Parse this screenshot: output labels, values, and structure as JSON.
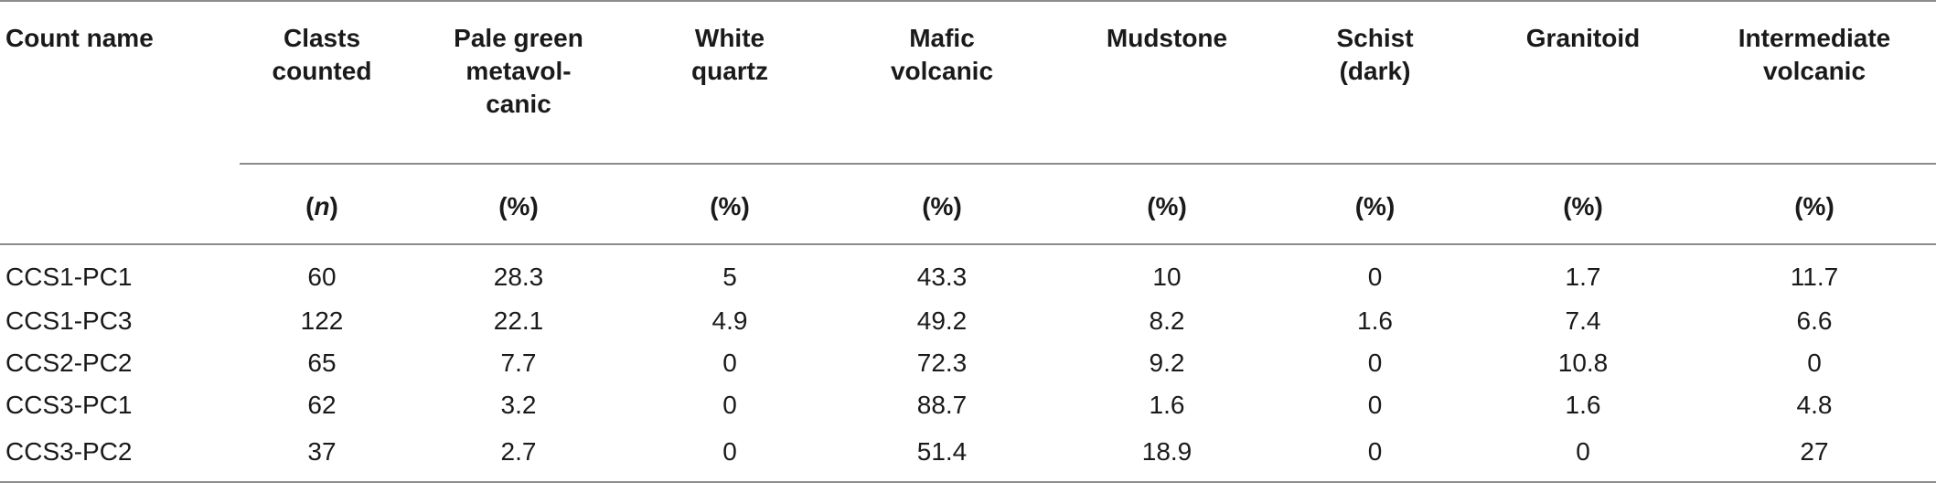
{
  "table": {
    "headers": [
      "Count name",
      "Clasts counted",
      "Pale green metavol-canic",
      "White quartz",
      "Mafic volcanic",
      "Mudstone",
      "Schist (dark)",
      "Granitoid",
      "Intermediate volcanic"
    ],
    "header_lines": [
      [
        "Count name"
      ],
      [
        "Clasts",
        "counted"
      ],
      [
        "Pale green",
        "metavol-",
        "canic"
      ],
      [
        "White",
        "quartz"
      ],
      [
        "Mafic",
        "volcanic"
      ],
      [
        "Mudstone"
      ],
      [
        "Schist",
        "(dark)"
      ],
      [
        "Granitoid"
      ],
      [
        "Intermediate",
        "volcanic"
      ]
    ],
    "units": [
      "",
      "n",
      "(%)",
      "(%)",
      "(%)",
      "(%)",
      "(%)",
      "(%)",
      "(%)"
    ],
    "rows": [
      [
        "CCS1-PC1",
        "60",
        "28.3",
        "5",
        "43.3",
        "10",
        "0",
        "1.7",
        "11.7"
      ],
      [
        "CCS1-PC3",
        "122",
        "22.1",
        "4.9",
        "49.2",
        "8.2",
        "1.6",
        "7.4",
        "6.6"
      ],
      [
        "CCS2-PC2",
        "65",
        "7.7",
        "0",
        "72.3",
        "9.2",
        "0",
        "10.8",
        "0"
      ],
      [
        "CCS3-PC1",
        "62",
        "3.2",
        "0",
        "88.7",
        "1.6",
        "0",
        "1.6",
        "4.8"
      ],
      [
        "CCS3-PC2",
        "37",
        "2.7",
        "0",
        "51.4",
        "18.9",
        "0",
        "0",
        "27"
      ]
    ]
  }
}
